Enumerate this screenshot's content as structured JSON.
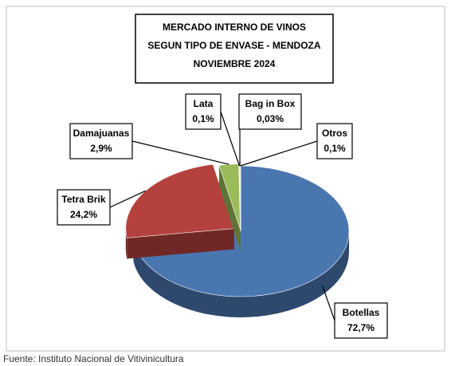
{
  "chart_data": {
    "type": "pie3d",
    "title": [
      "MERCADO INTERNO DE VINOS",
      "SEGUN TIPO DE ENVASE - MENDOZA",
      "NOVIEMBRE 2024"
    ],
    "categories": [
      "Botellas",
      "Tetra Brik",
      "Damajuanas",
      "Lata",
      "Bag in Box",
      "Otros"
    ],
    "values": [
      72.7,
      24.2,
      2.9,
      0.1,
      0.03,
      0.1
    ],
    "value_labels": [
      "72,7%",
      "24,2%",
      "2,9%",
      "0,1%",
      "0,03%",
      "0,1%"
    ],
    "colors": [
      "#4a76b0",
      "#b5413e",
      "#9bbb59",
      "#8064a2",
      "#4bacc6",
      "#f79646"
    ],
    "source": "Fuente: Instituto Nacional de Vitivinicultura"
  }
}
